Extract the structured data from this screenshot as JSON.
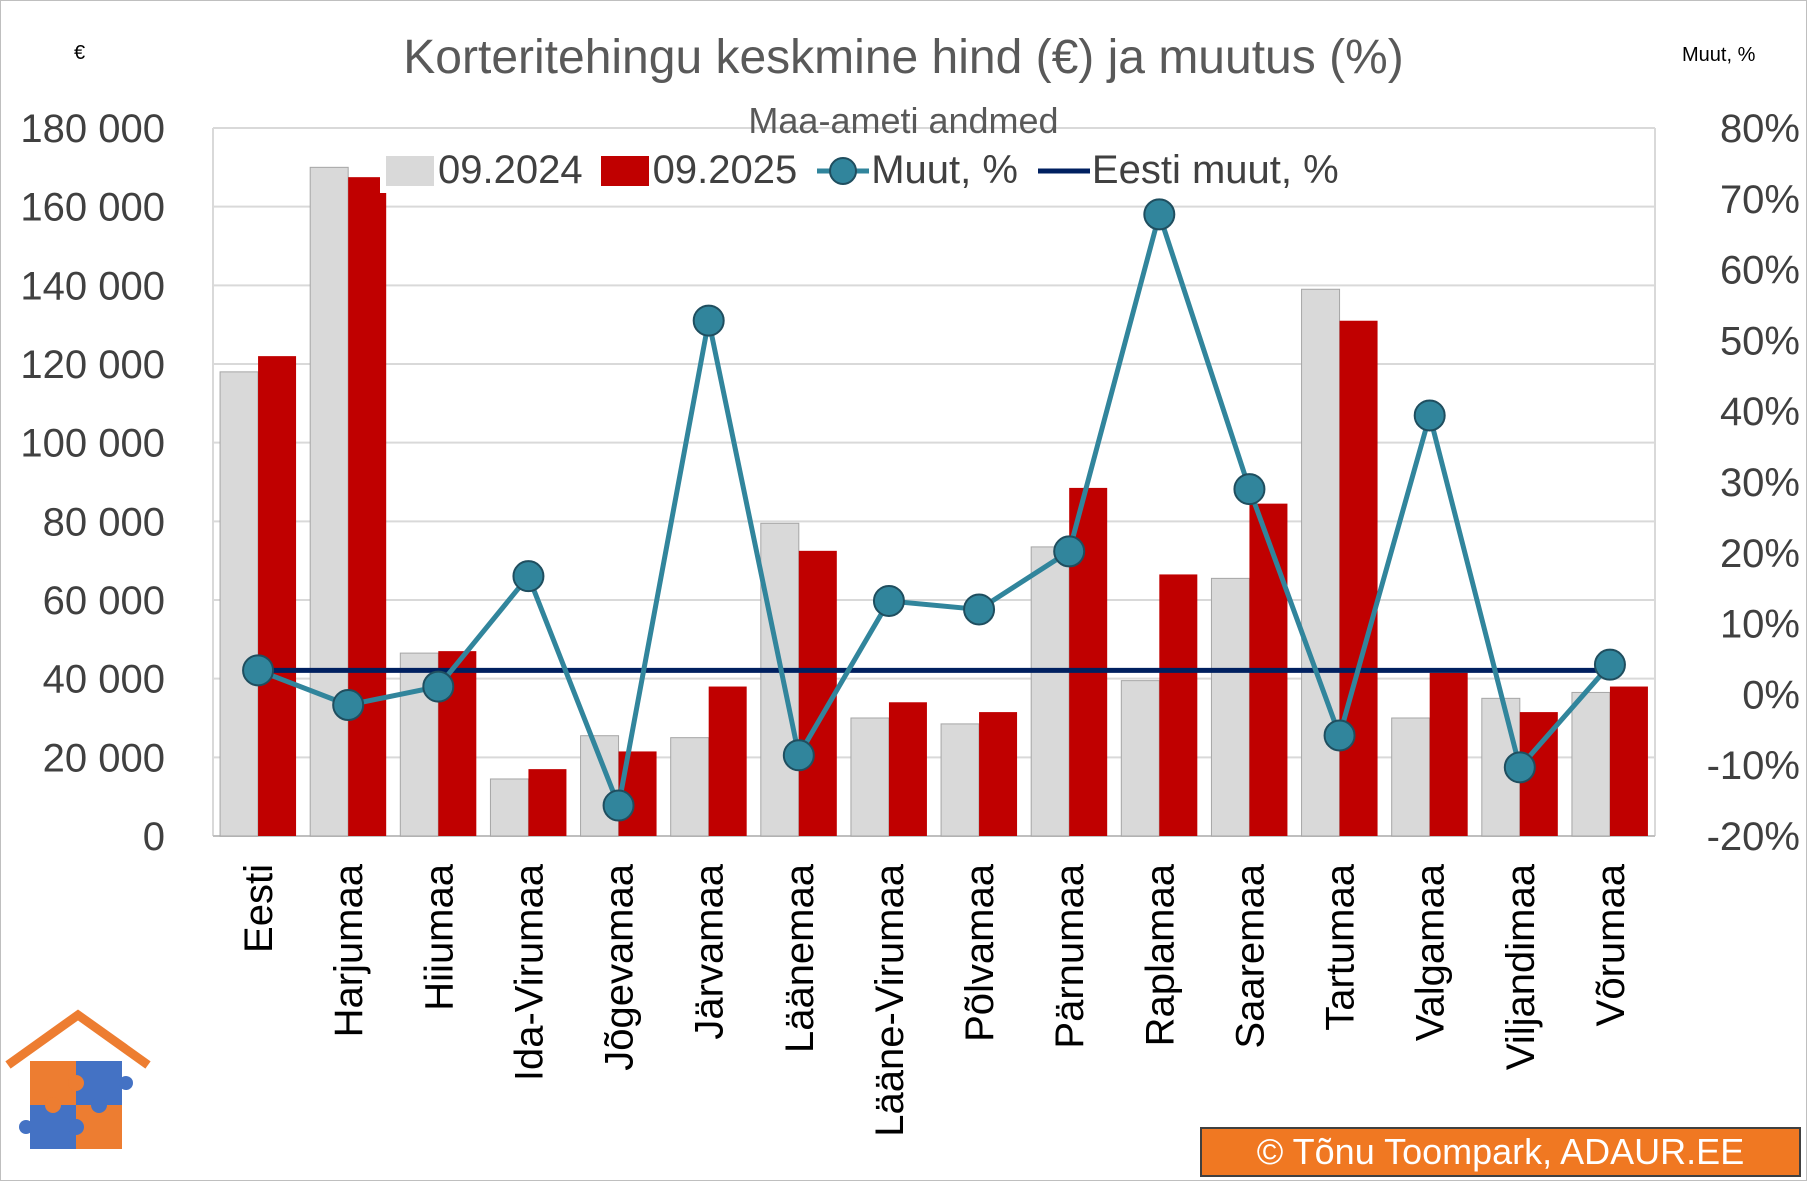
{
  "chart_data": {
    "type": "bar",
    "title": "Korteritehingu keskmine hind (€) ja muutus (%)",
    "subtitle": "Maa-ameti andmed",
    "left_axis_unit": "€",
    "right_axis_unit": "Muut, %",
    "categories": [
      "Eesti",
      "Harjumaa",
      "Hiiumaa",
      "Ida-Virumaa",
      "Jõgevamaa",
      "Järvamaa",
      "Läänemaa",
      "Lääne-Virumaa",
      "Põlvamaa",
      "Pärnumaa",
      "Raplamaa",
      "Saaremaa",
      "Tartumaa",
      "Valgamaa",
      "Viljandimaa",
      "Võrumaa"
    ],
    "series": [
      {
        "name": "09.2024",
        "type": "bar",
        "axis": "left",
        "color": "#d9d9d9",
        "values": [
          118000,
          170000,
          46500,
          14500,
          25500,
          25000,
          79500,
          30000,
          28500,
          73500,
          39500,
          65500,
          139000,
          30000,
          35000,
          36500
        ]
      },
      {
        "name": "09.2025",
        "type": "bar",
        "axis": "left",
        "color": "#c00000",
        "values": [
          122000,
          167500,
          47000,
          17000,
          21500,
          38000,
          72500,
          34000,
          31500,
          88500,
          66500,
          84500,
          131000,
          41500,
          31500,
          38000
        ]
      },
      {
        "name": "Muut, %",
        "type": "line",
        "axis": "right",
        "color": "#31859c",
        "values": [
          3.4,
          -1.5,
          1.1,
          16.7,
          -15.7,
          52.8,
          -8.6,
          13.2,
          12.0,
          20.2,
          67.8,
          29.0,
          -5.8,
          39.4,
          -10.3,
          4.2
        ]
      },
      {
        "name": "Eesti muut, %",
        "type": "line",
        "axis": "right",
        "color": "#002060",
        "constant": 3.4
      }
    ],
    "y_ticks": [
      "180 000",
      "160 000",
      "140 000",
      "120 000",
      "100 000",
      "80 000",
      "60 000",
      "40 000",
      "20 000",
      "0"
    ],
    "y2_ticks": [
      "80%",
      "70%",
      "60%",
      "50%",
      "40%",
      "30%",
      "20%",
      "10%",
      "0%",
      "-10%",
      "-20%"
    ],
    "ylim": [
      0,
      180000
    ],
    "y2lim": [
      -20,
      80
    ],
    "grid": true,
    "legend_position": "top"
  },
  "copyright": "© Tõnu Toompark, ADAUR.EE"
}
